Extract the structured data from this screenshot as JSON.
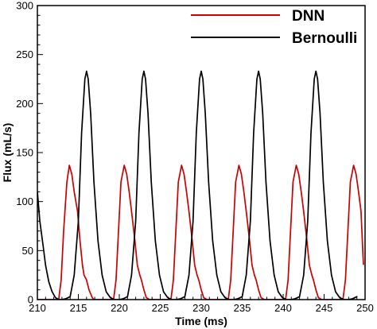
{
  "chart_data": {
    "type": "line",
    "title": "",
    "xlabel": "Time (ms)",
    "ylabel": "Flux (mL/s)",
    "xlim": [
      210,
      250
    ],
    "ylim": [
      0,
      300
    ],
    "xticks": [
      210,
      215,
      220,
      225,
      230,
      235,
      240,
      245,
      250
    ],
    "yticks": [
      0,
      50,
      100,
      150,
      200,
      250,
      300
    ],
    "grid": false,
    "legend_position": "top-right",
    "series": [
      {
        "name": "DNN",
        "color": "#cc0000",
        "x": [
          210,
          212.6,
          212.9,
          213.2,
          213.6,
          213.9,
          214.2,
          214.5,
          214.9,
          215.2,
          215.5,
          215.7,
          216.0,
          216.3,
          216.7,
          216.9,
          219.3,
          219.6,
          219.9,
          220.2,
          220.6,
          220.9,
          221.2,
          221.5,
          221.9,
          222.2,
          222.5,
          222.7,
          223.0,
          223.3,
          223.7,
          223.9,
          226.3,
          226.6,
          226.9,
          227.2,
          227.6,
          227.9,
          228.2,
          228.5,
          228.9,
          229.2,
          229.5,
          229.7,
          230.0,
          230.3,
          230.7,
          230.9,
          233.3,
          233.6,
          233.9,
          234.2,
          234.6,
          234.9,
          235.2,
          235.5,
          235.9,
          236.2,
          236.5,
          236.7,
          237.0,
          237.3,
          237.7,
          237.9,
          240.3,
          240.6,
          240.9,
          241.2,
          241.6,
          241.9,
          242.2,
          242.5,
          242.9,
          243.2,
          243.5,
          243.7,
          244.0,
          244.3,
          244.7,
          244.9,
          247.3,
          247.6,
          247.9,
          248.2,
          248.6,
          248.9,
          249.2,
          249.5,
          249.8
        ],
        "y": [
          0,
          0,
          20,
          70,
          120,
          137,
          128,
          110,
          90,
          60,
          35,
          25,
          20,
          10,
          2,
          0,
          0,
          20,
          70,
          120,
          137,
          128,
          110,
          90,
          60,
          35,
          25,
          20,
          10,
          2,
          0,
          0,
          0,
          20,
          70,
          120,
          137,
          128,
          110,
          90,
          60,
          35,
          25,
          20,
          10,
          2,
          0,
          0,
          0,
          20,
          70,
          120,
          137,
          128,
          110,
          90,
          60,
          35,
          25,
          20,
          10,
          2,
          0,
          0,
          0,
          20,
          70,
          120,
          137,
          128,
          110,
          90,
          60,
          35,
          25,
          20,
          10,
          2,
          0,
          0,
          0,
          20,
          70,
          120,
          137,
          128,
          110,
          90,
          36
        ]
      },
      {
        "name": "Bernoulli",
        "color": "#000000",
        "x": [
          210,
          210.3,
          210.7,
          211.0,
          211.4,
          211.8,
          212.2,
          212.6,
          213.0,
          213.5,
          214.0,
          214.5,
          215.0,
          215.4,
          215.8,
          216.0,
          216.2,
          216.5,
          216.9,
          217.4,
          217.9,
          218.4,
          218.9,
          219.4,
          220.0,
          220.5,
          221.0,
          221.5,
          222.0,
          222.4,
          222.8,
          223.0,
          223.2,
          223.5,
          223.9,
          224.4,
          224.9,
          225.4,
          225.9,
          226.4,
          227.0,
          227.5,
          228.0,
          228.5,
          229.0,
          229.4,
          229.8,
          230.0,
          230.2,
          230.5,
          230.9,
          231.4,
          231.9,
          232.4,
          232.9,
          233.4,
          234.0,
          234.5,
          235.0,
          235.5,
          236.0,
          236.4,
          236.8,
          237.0,
          237.2,
          237.5,
          237.9,
          238.4,
          238.9,
          239.4,
          239.9,
          240.4,
          241.0,
          241.5,
          242.0,
          242.5,
          243.0,
          243.4,
          243.8,
          244.0,
          244.2,
          244.5,
          244.9,
          245.4,
          245.9,
          246.4,
          246.9,
          247.4,
          248.0,
          248.5,
          249.0
        ],
        "y": [
          110,
          80,
          55,
          35,
          18,
          8,
          2,
          0,
          0,
          1,
          3,
          25,
          80,
          170,
          225,
          233,
          225,
          190,
          120,
          60,
          25,
          8,
          2,
          0,
          0,
          1,
          3,
          25,
          80,
          170,
          225,
          233,
          225,
          190,
          120,
          60,
          25,
          8,
          2,
          0,
          0,
          1,
          3,
          25,
          80,
          170,
          225,
          233,
          225,
          190,
          120,
          60,
          25,
          8,
          2,
          0,
          0,
          1,
          3,
          25,
          80,
          170,
          225,
          233,
          225,
          190,
          120,
          60,
          25,
          8,
          2,
          0,
          0,
          1,
          3,
          25,
          80,
          170,
          225,
          233,
          225,
          190,
          120,
          60,
          25,
          8,
          2,
          0,
          0,
          1,
          3
        ]
      }
    ]
  }
}
